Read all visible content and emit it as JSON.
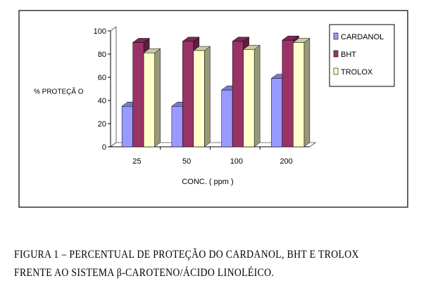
{
  "chart_data": {
    "type": "bar",
    "categories": [
      "25",
      "50",
      "100",
      "200"
    ],
    "series": [
      {
        "name": "CARDANOL",
        "values": [
          35,
          35,
          49,
          59
        ],
        "color": "#9999ff"
      },
      {
        "name": "BHT",
        "values": [
          90,
          91,
          91,
          92
        ],
        "color": "#993366"
      },
      {
        "name": "TROLOX",
        "values": [
          81,
          83,
          84,
          90
        ],
        "color": "#ffffcc"
      }
    ],
    "yticks": [
      "0",
      "20",
      "40",
      "60",
      "80",
      "100"
    ],
    "ylim": [
      0,
      100
    ],
    "xlabel": "CONC. ( ppm )",
    "ylabel": "% PROTEÇÃ O",
    "legend_position": "right",
    "grid": false
  },
  "caption": {
    "line1": "FIGURA 1 – PERCENTUAL DE PROTEÇÃO DO CARDANOL, BHT E TROLOX",
    "line2": "FRENTE AO SISTEMA β-CAROTENO/ÁCIDO LINOLÉICO."
  }
}
